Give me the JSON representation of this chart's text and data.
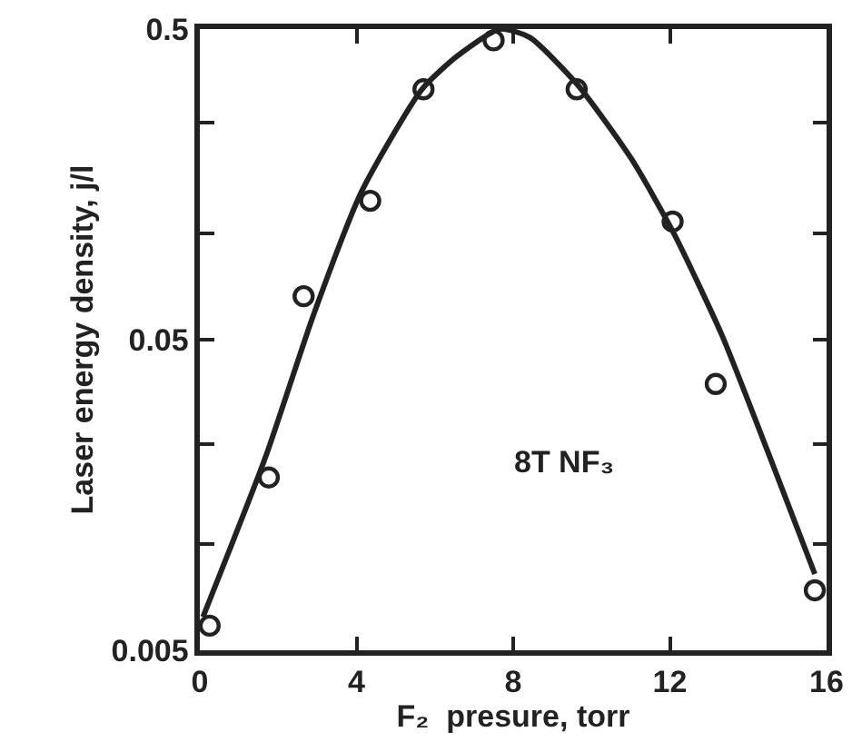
{
  "chart_data": {
    "type": "scatter",
    "xlabel": "F₂  presure, torr",
    "ylabel": "Laser energy density, j/l",
    "annotations": [
      "8T NF₃"
    ],
    "series": [
      {
        "color": "#222222",
        "marker": "circle",
        "x": [
          0.25,
          1.76,
          2.65,
          4.35,
          5.71,
          7.5,
          9.62,
          12.07,
          13.17,
          15.7
        ],
        "values": [
          0.006,
          0.018,
          0.069,
          0.14,
          0.32,
          0.46,
          0.32,
          0.12,
          0.036,
          0.0078
        ]
      },
      {
        "type": "line",
        "color": "#222222",
        "line_style": "solid",
        "x": [
          0.08,
          1.68,
          2.9,
          4.13,
          5.67,
          6.58,
          7.66,
          8.42,
          9.65,
          11.03,
          12.1,
          13.32,
          14.55,
          15.7
        ],
        "values": [
          0.0064,
          0.021,
          0.06,
          0.15,
          0.32,
          0.41,
          0.5,
          0.47,
          0.33,
          0.19,
          0.11,
          0.052,
          0.021,
          0.0088
        ]
      }
    ],
    "log": "y",
    "xlim": [
      0,
      16
    ],
    "xticks": [
      0,
      4,
      8,
      12,
      16
    ],
    "ylim": [
      0.005,
      0.5
    ],
    "yticks": [
      0.005,
      {
        "value": 0.011,
        "label": null
      },
      {
        "value": 0.023,
        "label": null
      },
      0.05,
      {
        "value": 0.11,
        "label": null
      },
      {
        "value": 0.25,
        "label": null
      },
      0.5
    ],
    "grid": false
  }
}
